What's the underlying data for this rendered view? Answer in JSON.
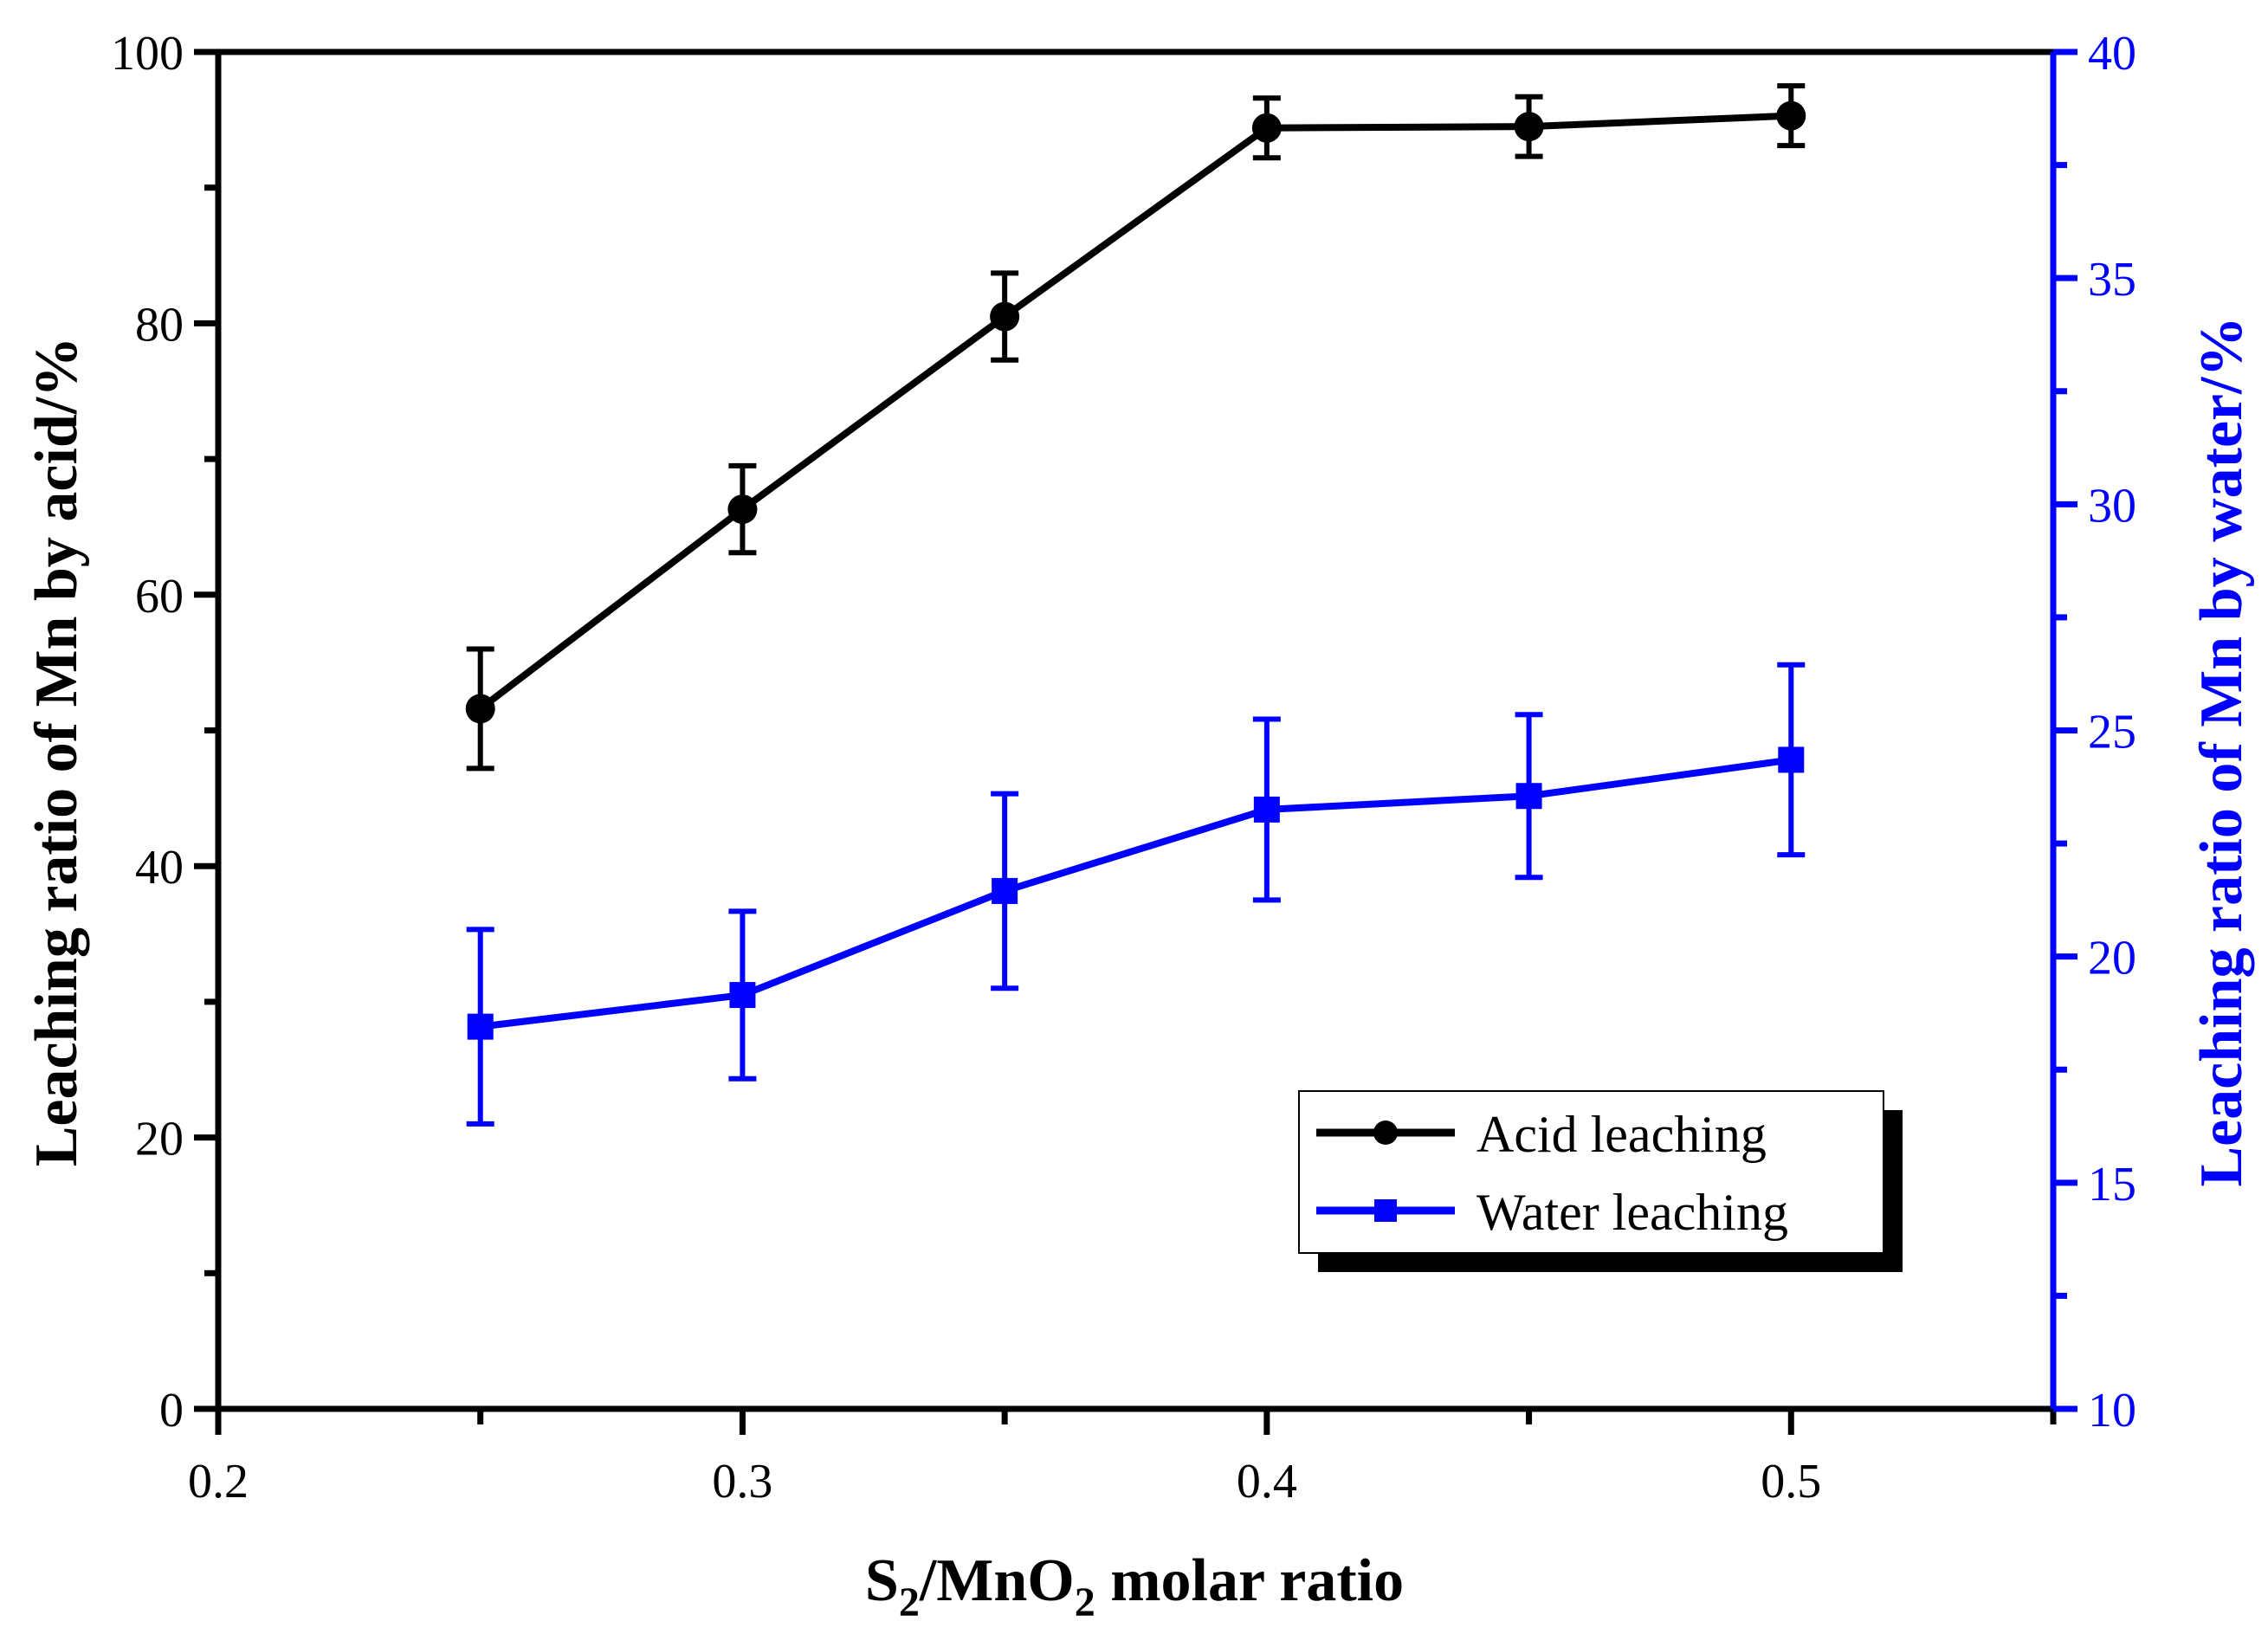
{
  "chart_data": {
    "type": "line",
    "title": "",
    "xlabel": {
      "base": "S",
      "sub1": "2",
      "mid": "/MnO",
      "sub2": "2",
      "tail": " molar ratio"
    },
    "ylabel_left": "Leaching ratio of Mn by acid/%",
    "ylabel_right": "Leaching ratio of Mn by water/%",
    "xlim": [
      0.2,
      0.55
    ],
    "ylim_left": [
      0,
      100
    ],
    "ylim_right": [
      10,
      40
    ],
    "x_ticks": [
      "0.2",
      "0.3",
      "0.4",
      "0.5"
    ],
    "y_left_ticks": [
      "0",
      "20",
      "40",
      "60",
      "80",
      "100"
    ],
    "y_right_ticks": [
      "10",
      "15",
      "20",
      "25",
      "30",
      "35",
      "40"
    ],
    "grid": false,
    "legend_position": "lower-right",
    "colors": {
      "acid": "#000000",
      "water": "#0000ff"
    },
    "x": [
      0.25,
      0.3,
      0.35,
      0.4,
      0.45,
      0.5
    ],
    "series": [
      {
        "name": "Acid leaching",
        "axis": "left",
        "marker": "circle",
        "values": [
          51.6,
          66.3,
          80.5,
          94.4,
          94.5,
          95.3
        ],
        "errors": [
          4.4,
          3.2,
          3.2,
          2.2,
          2.2,
          2.2
        ]
      },
      {
        "name": "Water leaching",
        "axis": "right",
        "marker": "square",
        "values": [
          18.45,
          19.15,
          21.45,
          23.25,
          23.55,
          24.35
        ],
        "errors": [
          2.15,
          1.85,
          2.15,
          2.0,
          1.8,
          2.1
        ]
      }
    ]
  }
}
